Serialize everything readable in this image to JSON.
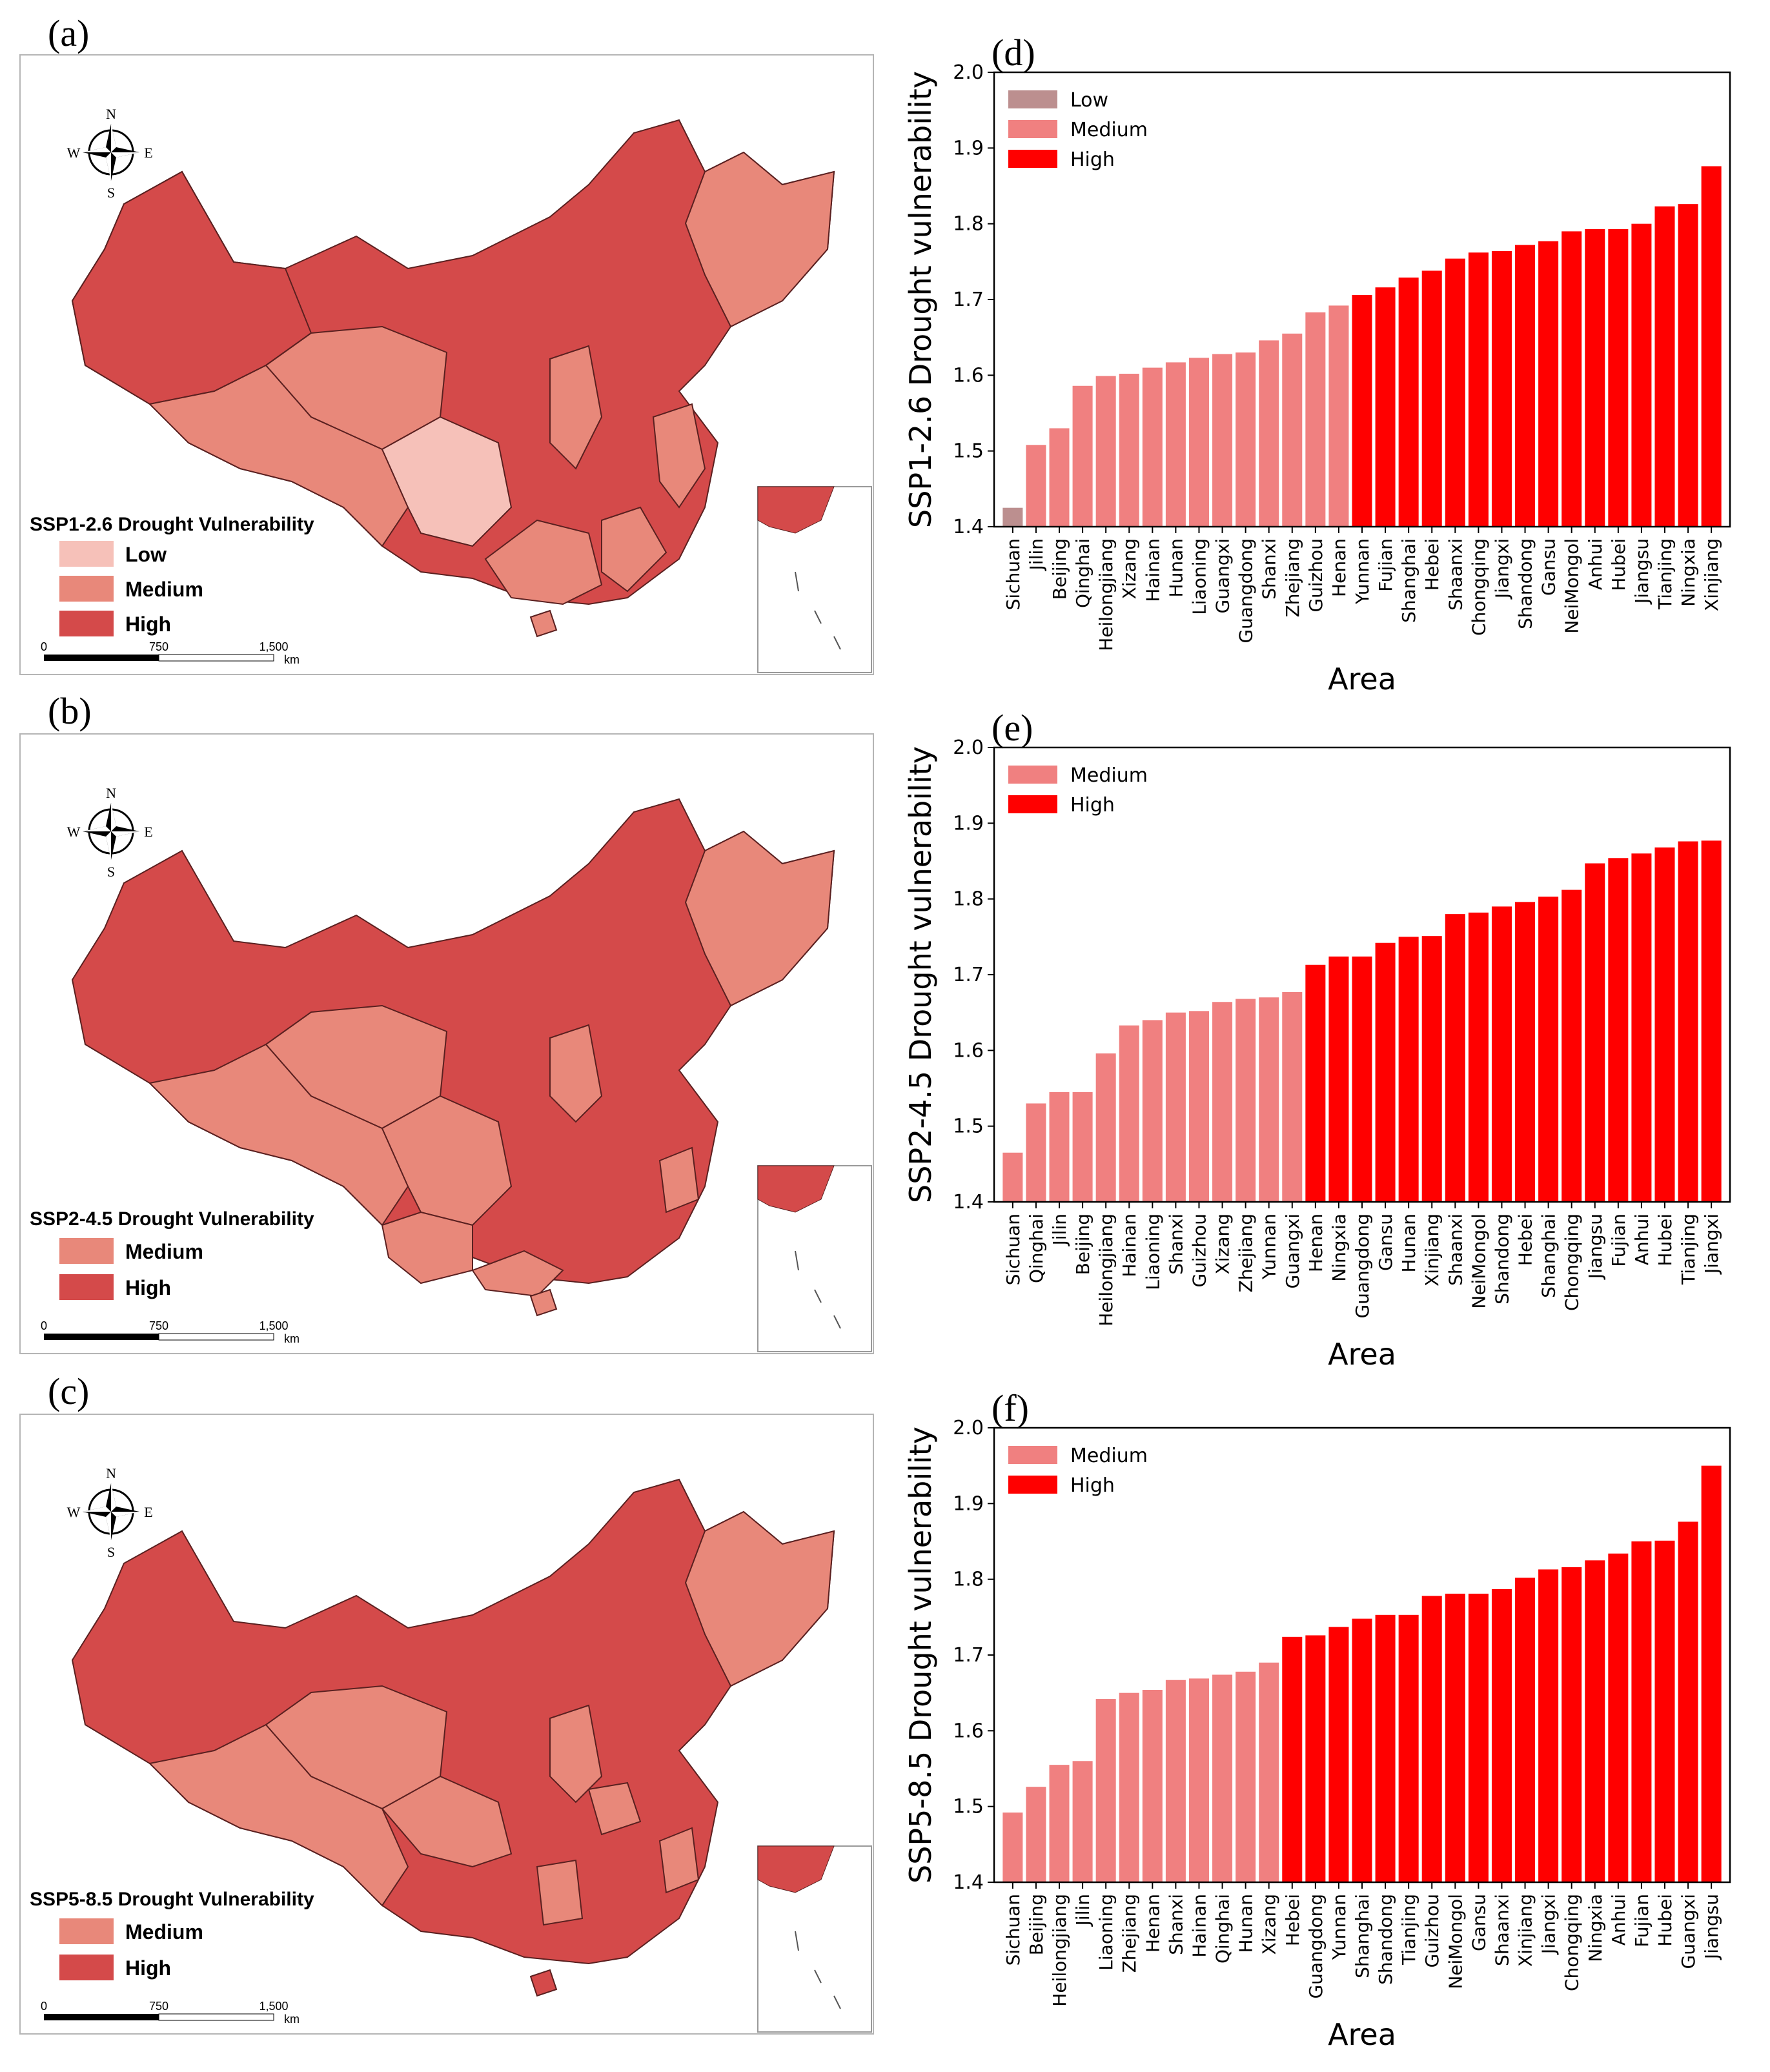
{
  "panels": [
    {
      "label": "(a)"
    },
    {
      "label": "(b)"
    },
    {
      "label": "(c)"
    },
    {
      "label": "(d)"
    },
    {
      "label": "(e)"
    },
    {
      "label": "(f)"
    }
  ],
  "maps": [
    {
      "legend_title": "SSP1-2.6 Drought Vulnerability",
      "legend": [
        {
          "label": "Low",
          "color": "#f6c1b9"
        },
        {
          "label": "Medium",
          "color": "#e8887a"
        },
        {
          "label": "High",
          "color": "#d44a4a"
        }
      ]
    },
    {
      "legend_title": "SSP2-4.5 Drought Vulnerability",
      "legend": [
        {
          "label": "Medium",
          "color": "#e8887a"
        },
        {
          "label": "High",
          "color": "#d44a4a"
        }
      ]
    },
    {
      "legend_title": "SSP5-8.5 Drought Vulnerability",
      "legend": [
        {
          "label": "Medium",
          "color": "#e8887a"
        },
        {
          "label": "High",
          "color": "#d44a4a"
        }
      ]
    }
  ],
  "compass": {
    "n": "N",
    "s": "S",
    "e": "E",
    "w": "W"
  },
  "scalebar": {
    "t0": "0",
    "t1": "750",
    "t2": "1,500",
    "unit": "km"
  },
  "chart_data": [
    {
      "type": "bar",
      "ylabel": "SSP1-2.6 Drought vulnerability",
      "xlabel": "Area",
      "ylim": [
        1.4,
        2.0
      ],
      "yticks": [
        "1.4",
        "1.5",
        "1.6",
        "1.7",
        "1.8",
        "1.9",
        "2.0"
      ],
      "legend": [
        {
          "label": "Low",
          "color": "#bc8f8f"
        },
        {
          "label": "Medium",
          "color": "#f08080"
        },
        {
          "label": "High",
          "color": "#ff0000"
        }
      ],
      "categories": [
        "Sichuan",
        "Jilin",
        "Beijing",
        "Qinghai",
        "Heilongjiang",
        "Xizang",
        "Hainan",
        "Hunan",
        "Liaoning",
        "Guangxi",
        "Guangdong",
        "Shanxi",
        "Zhejiang",
        "Guizhou",
        "Henan",
        "Yunnan",
        "Fujian",
        "Shanghai",
        "Hebei",
        "Shaanxi",
        "Chongqing",
        "Jiangxi",
        "Shandong",
        "Gansu",
        "NeiMongol",
        "Anhui",
        "Hubei",
        "Jiangsu",
        "Tianjing",
        "Ningxia",
        "Xinjiang"
      ],
      "values": [
        1.425,
        1.508,
        1.53,
        1.586,
        1.599,
        1.602,
        1.61,
        1.617,
        1.623,
        1.628,
        1.63,
        1.646,
        1.655,
        1.683,
        1.692,
        1.706,
        1.716,
        1.729,
        1.738,
        1.754,
        1.762,
        1.764,
        1.772,
        1.777,
        1.79,
        1.793,
        1.793,
        1.8,
        1.823,
        1.826,
        1.876
      ],
      "levels": [
        "Low",
        "Medium",
        "Medium",
        "Medium",
        "Medium",
        "Medium",
        "Medium",
        "Medium",
        "Medium",
        "Medium",
        "Medium",
        "Medium",
        "Medium",
        "Medium",
        "Medium",
        "High",
        "High",
        "High",
        "High",
        "High",
        "High",
        "High",
        "High",
        "High",
        "High",
        "High",
        "High",
        "High",
        "High",
        "High",
        "High"
      ]
    },
    {
      "type": "bar",
      "ylabel": "SSP2-4.5 Drought vulnerability",
      "xlabel": "Area",
      "ylim": [
        1.4,
        2.0
      ],
      "yticks": [
        "1.4",
        "1.5",
        "1.6",
        "1.7",
        "1.8",
        "1.9",
        "2.0"
      ],
      "legend": [
        {
          "label": "Medium",
          "color": "#f08080"
        },
        {
          "label": "High",
          "color": "#ff0000"
        }
      ],
      "categories": [
        "Sichuan",
        "Qinghai",
        "Jilin",
        "Beijing",
        "Heilongjiang",
        "Hainan",
        "Liaoning",
        "Shanxi",
        "Guizhou",
        "Xizang",
        "Zhejiang",
        "Yunnan",
        "Guangxi",
        "Henan",
        "Ningxia",
        "Guangdong",
        "Gansu",
        "Hunan",
        "Xinjiang",
        "Shaanxi",
        "NeiMongol",
        "Shandong",
        "Hebei",
        "Shanghai",
        "Chongqing",
        "Jiangsu",
        "Fujian",
        "Anhui",
        "Hubei",
        "Tianjing",
        "Jiangxi"
      ],
      "values": [
        1.465,
        1.53,
        1.545,
        1.545,
        1.596,
        1.633,
        1.64,
        1.65,
        1.652,
        1.664,
        1.668,
        1.67,
        1.677,
        1.713,
        1.724,
        1.724,
        1.742,
        1.75,
        1.751,
        1.78,
        1.782,
        1.79,
        1.796,
        1.803,
        1.812,
        1.847,
        1.854,
        1.86,
        1.868,
        1.876,
        1.877
      ],
      "levels": [
        "Medium",
        "Medium",
        "Medium",
        "Medium",
        "Medium",
        "Medium",
        "Medium",
        "Medium",
        "Medium",
        "Medium",
        "Medium",
        "Medium",
        "Medium",
        "High",
        "High",
        "High",
        "High",
        "High",
        "High",
        "High",
        "High",
        "High",
        "High",
        "High",
        "High",
        "High",
        "High",
        "High",
        "High",
        "High",
        "High"
      ]
    },
    {
      "type": "bar",
      "ylabel": "SSP5-8.5 Drought vulnerability",
      "xlabel": "Area",
      "ylim": [
        1.4,
        2.0
      ],
      "yticks": [
        "1.4",
        "1.5",
        "1.6",
        "1.7",
        "1.8",
        "1.9",
        "2.0"
      ],
      "legend": [
        {
          "label": "Medium",
          "color": "#f08080"
        },
        {
          "label": "High",
          "color": "#ff0000"
        }
      ],
      "categories": [
        "Sichuan",
        "Beijing",
        "Heilongjiang",
        "Jilin",
        "Liaoning",
        "Zhejiang",
        "Henan",
        "Shanxi",
        "Hainan",
        "Qinghai",
        "Hunan",
        "Xizang",
        "Hebei",
        "Guangdong",
        "Yunnan",
        "Shanghai",
        "Shandong",
        "Tianjing",
        "Guizhou",
        "NeiMongol",
        "Gansu",
        "Shaanxi",
        "Xinjiang",
        "Jiangxi",
        "Chongqing",
        "Ningxia",
        "Anhui",
        "Fujian",
        "Hubei",
        "Guangxi",
        "Jiangsu"
      ],
      "values": [
        1.492,
        1.526,
        1.555,
        1.56,
        1.642,
        1.65,
        1.654,
        1.667,
        1.669,
        1.674,
        1.678,
        1.69,
        1.724,
        1.726,
        1.737,
        1.748,
        1.753,
        1.753,
        1.778,
        1.781,
        1.781,
        1.787,
        1.802,
        1.813,
        1.816,
        1.825,
        1.834,
        1.85,
        1.851,
        1.876,
        1.95
      ],
      "levels": [
        "Medium",
        "Medium",
        "Medium",
        "Medium",
        "Medium",
        "Medium",
        "Medium",
        "Medium",
        "Medium",
        "Medium",
        "Medium",
        "Medium",
        "High",
        "High",
        "High",
        "High",
        "High",
        "High",
        "High",
        "High",
        "High",
        "High",
        "High",
        "High",
        "High",
        "High",
        "High",
        "High",
        "High",
        "High",
        "High"
      ]
    }
  ]
}
